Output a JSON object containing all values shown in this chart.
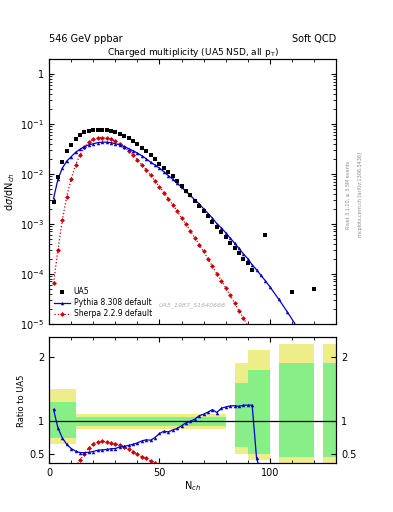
{
  "title_left": "546 GeV ppbar",
  "title_right": "Soft QCD",
  "plot_title": "Charged multiplicity (UA5 NSD, all p$_\\mathrm{T}$)",
  "ylabel_main": "dσ/dN$_{ch}$",
  "ylabel_ratio": "Ratio to UA5",
  "xlabel": "N$_{ch}$",
  "rivet_label": "Rivet 3.1.10, ≥ 3.5M events",
  "arxiv_label": "mcplots.cern.ch [arXiv:1306.3436]",
  "watermark": "UA5_1987_S1640666",
  "ua5_x": [
    2,
    4,
    6,
    8,
    10,
    12,
    14,
    16,
    18,
    20,
    22,
    24,
    26,
    28,
    30,
    32,
    34,
    36,
    38,
    40,
    42,
    44,
    46,
    48,
    50,
    52,
    54,
    56,
    58,
    60,
    62,
    64,
    66,
    68,
    70,
    72,
    74,
    76,
    78,
    80,
    82,
    84,
    86,
    88,
    90,
    92,
    98,
    110,
    120
  ],
  "ua5_y": [
    0.0027,
    0.0087,
    0.0175,
    0.028,
    0.038,
    0.05,
    0.06,
    0.068,
    0.073,
    0.075,
    0.076,
    0.077,
    0.076,
    0.073,
    0.069,
    0.063,
    0.057,
    0.051,
    0.045,
    0.039,
    0.033,
    0.028,
    0.024,
    0.02,
    0.016,
    0.013,
    0.011,
    0.009,
    0.0073,
    0.0058,
    0.0046,
    0.0037,
    0.0029,
    0.0023,
    0.0018,
    0.0014,
    0.0011,
    0.00088,
    0.00069,
    0.00054,
    0.00042,
    0.00033,
    0.00026,
    0.0002,
    0.00016,
    0.00012,
    0.0006,
    4.2e-05,
    5e-05
  ],
  "pythia_x": [
    2,
    4,
    6,
    8,
    10,
    12,
    14,
    16,
    18,
    20,
    22,
    24,
    26,
    28,
    30,
    32,
    34,
    36,
    38,
    40,
    42,
    44,
    46,
    48,
    50,
    52,
    54,
    56,
    58,
    60,
    62,
    64,
    66,
    68,
    70,
    72,
    74,
    76,
    78,
    80,
    82,
    84,
    86,
    88,
    90,
    92,
    94,
    96,
    98,
    100,
    104,
    108,
    112,
    116,
    120
  ],
  "pythia_y": [
    0.0032,
    0.0078,
    0.013,
    0.018,
    0.022,
    0.027,
    0.031,
    0.035,
    0.038,
    0.04,
    0.042,
    0.043,
    0.043,
    0.042,
    0.04,
    0.038,
    0.035,
    0.032,
    0.029,
    0.026,
    0.023,
    0.02,
    0.017,
    0.015,
    0.013,
    0.011,
    0.0092,
    0.0078,
    0.0065,
    0.0054,
    0.0045,
    0.0037,
    0.003,
    0.0025,
    0.002,
    0.0016,
    0.0013,
    0.001,
    0.00083,
    0.00066,
    0.00052,
    0.00041,
    0.00032,
    0.00025,
    0.0002,
    0.00015,
    0.00012,
    9.2e-05,
    7.2e-05,
    5.5e-05,
    3.1e-05,
    1.7e-05,
    9e-06,
    4.8e-06,
    2.5e-06
  ],
  "sherpa_x": [
    2,
    4,
    6,
    8,
    10,
    12,
    14,
    16,
    18,
    20,
    22,
    24,
    26,
    28,
    30,
    32,
    34,
    36,
    38,
    40,
    42,
    44,
    46,
    48,
    50,
    52,
    54,
    56,
    58,
    60,
    62,
    64,
    66,
    68,
    70,
    72,
    74,
    76,
    78,
    80,
    82,
    84,
    86,
    88,
    90,
    92,
    94,
    96,
    98,
    100,
    104,
    108,
    112,
    116,
    120
  ],
  "sherpa_y": [
    6.5e-05,
    0.0003,
    0.0012,
    0.0035,
    0.008,
    0.015,
    0.024,
    0.034,
    0.043,
    0.049,
    0.052,
    0.053,
    0.052,
    0.049,
    0.045,
    0.04,
    0.034,
    0.029,
    0.024,
    0.019,
    0.015,
    0.012,
    0.0093,
    0.0072,
    0.0055,
    0.0042,
    0.0032,
    0.0024,
    0.0018,
    0.0013,
    0.00098,
    0.00072,
    0.00053,
    0.00038,
    0.00028,
    0.0002,
    0.00014,
    0.0001,
    7.3e-05,
    5.2e-05,
    3.7e-05,
    2.6e-05,
    1.8e-05,
    1.3e-05,
    9.1e-06,
    6.4e-06,
    4.4e-06,
    3.1e-06,
    2.1e-06,
    1.5e-06,
    7.2e-07,
    3.4e-07,
    1.6e-07,
    7.5e-08,
    3.5e-08
  ],
  "ua5_color": "#000000",
  "pythia_color": "#0000cc",
  "sherpa_color": "#cc0000",
  "bg_color": "#ffffff",
  "band_yellow": "#eeee88",
  "band_green": "#88ee88",
  "xlim": [
    0,
    130
  ],
  "ylim_main": [
    1e-05,
    2.0
  ],
  "ratio_ylim": [
    0.35,
    2.3
  ],
  "ratio_yticks": [
    0.5,
    1.0,
    2.0
  ]
}
